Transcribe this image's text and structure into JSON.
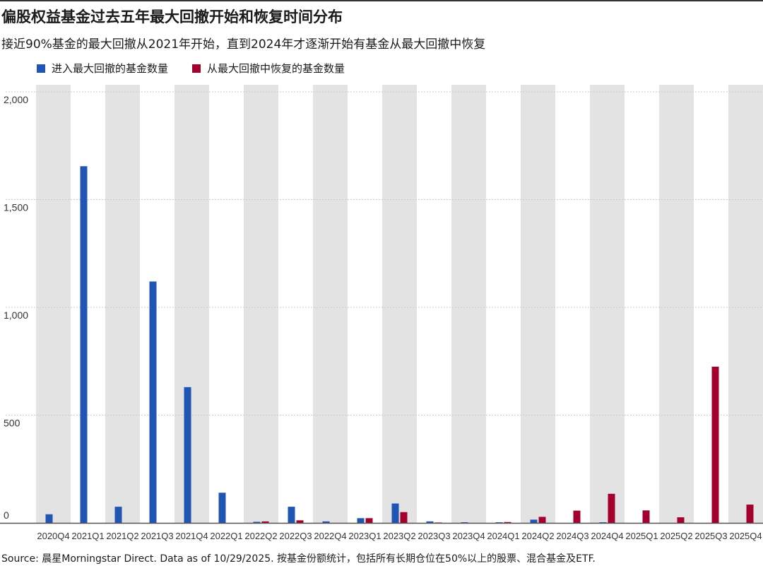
{
  "title": "偏股权益基金过去五年最大回撤开始和恢复时间分布",
  "subtitle": "接近90%基金的最大回撤从2021年开始，直到2024年才逐渐开始有基金从最大回撤中恢复",
  "source": "Source: 晨星Morningstar Direct. Data as of 10/29/2025. 按基金份额统计，包括所有长期仓位在50%以上的股票、混合基金及ETF.",
  "colors": {
    "series1": "#1f56b4",
    "series2": "#a3002d",
    "band": "#e3e3e3",
    "grid": "#c8c8c8",
    "axis": "#555555"
  },
  "chart_data": {
    "type": "bar",
    "categories": [
      "2020Q4",
      "2021Q1",
      "2021Q2",
      "2021Q3",
      "2021Q4",
      "2022Q1",
      "2022Q2",
      "2022Q3",
      "2022Q4",
      "2023Q1",
      "2023Q2",
      "2023Q3",
      "2023Q4",
      "2024Q1",
      "2024Q2",
      "2024Q3",
      "2024Q4",
      "2025Q1",
      "2025Q2",
      "2025Q3",
      "2025Q4"
    ],
    "series": [
      {
        "name": "进入最大回撤的基金数量",
        "color": "#1f56b4",
        "values": [
          40,
          1655,
          75,
          1120,
          630,
          140,
          5,
          75,
          7,
          22,
          90,
          7,
          3,
          3,
          15,
          0,
          3,
          0,
          0,
          0,
          0
        ]
      },
      {
        "name": "从最大回撤中恢复的基金数量",
        "color": "#a3002d",
        "values": [
          0,
          0,
          0,
          0,
          0,
          0,
          7,
          12,
          0,
          22,
          50,
          2,
          0,
          4,
          28,
          57,
          135,
          58,
          26,
          725,
          85
        ]
      }
    ],
    "ylim": [
      0,
      2000
    ],
    "yticks": [
      0,
      500,
      1000,
      1500,
      2000
    ],
    "ytick_labels": [
      "0",
      "500",
      "1,000",
      "1,500",
      "2,000"
    ],
    "grid": true,
    "alternating_bands": true,
    "legend_position": "top-left"
  }
}
